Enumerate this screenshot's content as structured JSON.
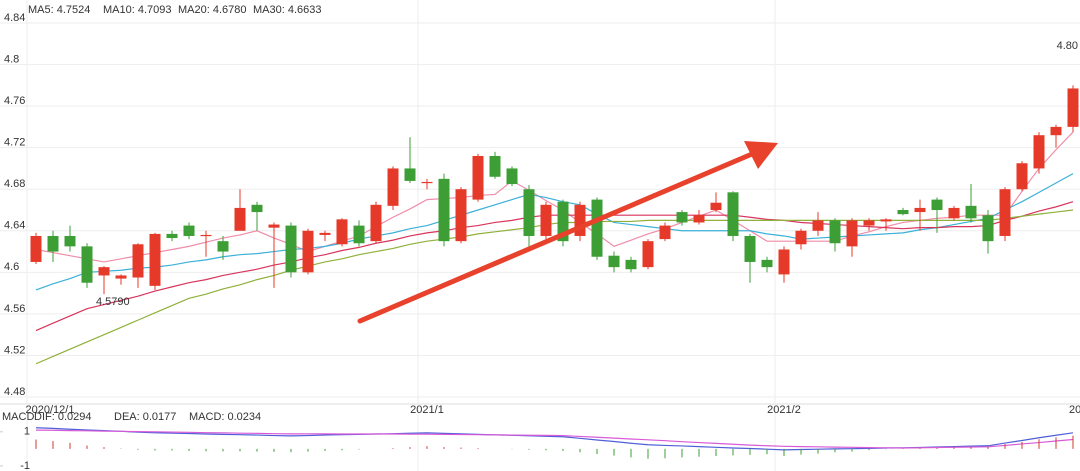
{
  "chart_data": [
    {
      "type": "candlestick",
      "categories": [
        "2020/12/1",
        null,
        null,
        null,
        null,
        null,
        null,
        null,
        null,
        null,
        null,
        null,
        null,
        null,
        null,
        null,
        null,
        null,
        null,
        null,
        null,
        null,
        null,
        "2021/1",
        null,
        null,
        null,
        null,
        null,
        null,
        null,
        null,
        null,
        null,
        null,
        null,
        null,
        null,
        null,
        null,
        null,
        null,
        null,
        null,
        "2021/2",
        null,
        null,
        null,
        null,
        null,
        null,
        null,
        null,
        null,
        null,
        null,
        null,
        null,
        null,
        null,
        null,
        "20"
      ],
      "open": [
        4.61,
        4.635,
        4.635,
        4.625,
        4.597,
        4.594,
        4.595,
        4.587,
        4.637,
        4.645,
        4.635,
        4.63,
        4.64,
        4.665,
        4.643,
        4.645,
        4.6,
        4.636,
        4.627,
        4.645,
        4.63,
        4.664,
        4.7,
        4.686,
        4.69,
        4.63,
        4.67,
        4.712,
        4.7,
        4.68,
        4.635,
        4.668,
        4.635,
        4.67,
        4.616,
        4.612,
        4.605,
        4.632,
        4.658,
        4.648,
        4.66,
        4.677,
        4.635,
        4.612,
        4.598,
        4.627,
        4.64,
        4.65,
        4.625,
        4.645,
        4.649,
        4.66,
        4.658,
        4.67,
        4.652,
        4.664,
        4.655,
        4.635,
        4.68,
        4.7,
        4.732,
        4.74
      ],
      "high": [
        4.638,
        4.64,
        4.645,
        4.628,
        4.606,
        4.598,
        4.628,
        4.638,
        4.64,
        4.648,
        4.64,
        4.635,
        4.68,
        4.668,
        4.648,
        4.648,
        4.642,
        4.64,
        4.652,
        4.65,
        4.668,
        4.702,
        4.73,
        4.69,
        4.695,
        4.682,
        4.714,
        4.716,
        4.702,
        4.684,
        4.668,
        4.67,
        4.668,
        4.672,
        4.62,
        4.615,
        4.632,
        4.648,
        4.66,
        4.66,
        4.677,
        4.678,
        4.637,
        4.615,
        4.625,
        4.642,
        4.658,
        4.652,
        4.652,
        4.652,
        4.652,
        4.662,
        4.67,
        4.672,
        4.664,
        4.685,
        4.66,
        4.682,
        4.707,
        4.735,
        4.742,
        4.78
      ],
      "low": [
        4.608,
        4.61,
        4.62,
        4.585,
        4.579,
        4.588,
        4.585,
        4.583,
        4.63,
        4.632,
        4.615,
        4.612,
        4.64,
        4.64,
        4.585,
        4.595,
        4.598,
        4.63,
        4.625,
        4.625,
        4.628,
        4.66,
        4.686,
        4.68,
        4.625,
        4.628,
        4.668,
        4.69,
        4.683,
        4.62,
        4.632,
        4.625,
        4.63,
        4.612,
        4.6,
        4.6,
        4.603,
        4.63,
        4.645,
        4.646,
        4.658,
        4.63,
        4.59,
        4.6,
        4.59,
        4.622,
        4.635,
        4.62,
        4.615,
        4.64,
        4.64,
        4.655,
        4.64,
        4.638,
        4.65,
        4.648,
        4.618,
        4.63,
        4.678,
        4.695,
        4.72,
        4.735
      ],
      "close": [
        4.635,
        4.62,
        4.625,
        4.59,
        4.605,
        4.597,
        4.627,
        4.637,
        4.633,
        4.635,
        4.636,
        4.62,
        4.662,
        4.658,
        4.646,
        4.6,
        4.64,
        4.638,
        4.651,
        4.628,
        4.665,
        4.7,
        4.688,
        4.687,
        4.63,
        4.68,
        4.712,
        4.692,
        4.685,
        4.635,
        4.665,
        4.63,
        4.665,
        4.615,
        4.605,
        4.603,
        4.63,
        4.645,
        4.648,
        4.655,
        4.667,
        4.635,
        4.61,
        4.605,
        4.622,
        4.64,
        4.65,
        4.628,
        4.65,
        4.65,
        4.651,
        4.656,
        4.662,
        4.66,
        4.662,
        4.652,
        4.63,
        4.68,
        4.705,
        4.732,
        4.74,
        4.777
      ],
      "up_color": "#e5392a",
      "down_color": "#3c9e34",
      "series": [
        {
          "name": "MA5: 4.7524",
          "color": "#f08ca8",
          "values": [
            4.622,
            4.619,
            4.616,
            4.613,
            4.61,
            4.613,
            4.616,
            4.619,
            4.622,
            4.625,
            4.629,
            4.633,
            4.636,
            4.64,
            4.633,
            4.627,
            4.62,
            4.625,
            4.63,
            4.635,
            4.644,
            4.653,
            4.661,
            4.67,
            4.671,
            4.672,
            4.674,
            4.675,
            4.688,
            4.679,
            4.669,
            4.66,
            4.648,
            4.637,
            4.625,
            4.631,
            4.637,
            4.642,
            4.648,
            4.654,
            4.66,
            4.65,
            4.64,
            4.63,
            4.63,
            4.63,
            4.63,
            4.63,
            4.635,
            4.639,
            4.644,
            4.648,
            4.65,
            4.652,
            4.653,
            4.655,
            4.655,
            4.655,
            4.678,
            4.7,
            4.718,
            4.735
          ]
        },
        {
          "name": "MA10: 4.7093",
          "color": "#3bb0d8",
          "values": [
            4.583,
            4.589,
            4.594,
            4.6,
            4.601,
            4.602,
            4.604,
            4.605,
            4.607,
            4.61,
            4.612,
            4.615,
            4.617,
            4.618,
            4.62,
            4.622,
            4.623,
            4.625,
            4.628,
            4.632,
            4.635,
            4.638,
            4.642,
            4.645,
            4.65,
            4.655,
            4.66,
            4.665,
            4.67,
            4.675,
            4.672,
            4.668,
            4.665,
            4.656,
            4.648,
            4.646,
            4.644,
            4.642,
            4.64,
            4.64,
            4.64,
            4.64,
            4.64,
            4.637,
            4.635,
            4.632,
            4.633,
            4.634,
            4.635,
            4.636,
            4.637,
            4.638,
            4.641,
            4.643,
            4.646,
            4.649,
            4.652,
            4.66,
            4.668,
            4.677,
            4.686,
            4.695
          ]
        },
        {
          "name": "MA20: 4.6780",
          "color": "#d8345c",
          "values": [
            4.544,
            4.551,
            4.558,
            4.565,
            4.569,
            4.573,
            4.577,
            4.582,
            4.586,
            4.59,
            4.593,
            4.597,
            4.6,
            4.603,
            4.607,
            4.61,
            4.614,
            4.617,
            4.621,
            4.624,
            4.628,
            4.631,
            4.635,
            4.638,
            4.64,
            4.643,
            4.645,
            4.648,
            4.65,
            4.653,
            4.655,
            4.655,
            4.655,
            4.655,
            4.655,
            4.655,
            4.655,
            4.655,
            4.655,
            4.655,
            4.655,
            4.655,
            4.653,
            4.651,
            4.65,
            4.648,
            4.647,
            4.646,
            4.645,
            4.644,
            4.643,
            4.642,
            4.643,
            4.643,
            4.644,
            4.644,
            4.645,
            4.65,
            4.654,
            4.659,
            4.663,
            4.668
          ]
        },
        {
          "name": "MA30: 4.6633",
          "color": "#8fb03a",
          "values": [
            4.512,
            4.519,
            4.526,
            4.533,
            4.54,
            4.547,
            4.554,
            4.561,
            4.568,
            4.575,
            4.579,
            4.584,
            4.588,
            4.593,
            4.597,
            4.602,
            4.606,
            4.61,
            4.613,
            4.617,
            4.62,
            4.623,
            4.627,
            4.63,
            4.632,
            4.634,
            4.637,
            4.639,
            4.641,
            4.643,
            4.646,
            4.648,
            4.648,
            4.649,
            4.649,
            4.649,
            4.65,
            4.65,
            4.65,
            4.65,
            4.65,
            4.65,
            4.65,
            4.65,
            4.65,
            4.65,
            4.65,
            4.65,
            4.65,
            4.65,
            4.65,
            4.65,
            4.65,
            4.65,
            4.65,
            4.65,
            4.65,
            4.652,
            4.654,
            4.656,
            4.658,
            4.66
          ]
        }
      ],
      "annotations": [
        "4.5790",
        "4.80"
      ],
      "ylim": [
        4.48,
        4.84
      ],
      "yticks": [
        4.84,
        4.8,
        4.76,
        4.72,
        4.68,
        4.64,
        4.6,
        4.56,
        4.52,
        4.48
      ],
      "grid": true
    },
    {
      "type": "macd",
      "title": "MACD",
      "series": [
        {
          "name": "DIF: 0.0294",
          "color": "#4f5fd8",
          "values": [
            1.24,
            1.2,
            1.15,
            1.11,
            1.07,
            1.03,
            0.98,
            0.94,
            0.92,
            0.9,
            0.87,
            0.85,
            0.83,
            0.81,
            0.78,
            0.76,
            0.78,
            0.81,
            0.83,
            0.85,
            0.87,
            0.89,
            0.92,
            0.94,
            0.91,
            0.88,
            0.85,
            0.82,
            0.8,
            0.77,
            0.74,
            0.71,
            0.62,
            0.52,
            0.43,
            0.33,
            0.24,
            0.2,
            0.17,
            0.13,
            0.09,
            0.05,
            0.02,
            -0.02,
            -0.06,
            -0.04,
            -0.02,
            0.0,
            0.01,
            0.03,
            0.05,
            0.06,
            0.08,
            0.11,
            0.13,
            0.16,
            0.18,
            0.34,
            0.49,
            0.65,
            0.8,
            0.94
          ]
        },
        {
          "name": "DEA: 0.0177",
          "color": "#d85ad8",
          "values": [
            1.1,
            1.09,
            1.07,
            1.06,
            1.04,
            1.03,
            1.01,
            1.0,
            0.98,
            0.97,
            0.95,
            0.94,
            0.92,
            0.91,
            0.89,
            0.88,
            0.88,
            0.88,
            0.87,
            0.87,
            0.87,
            0.87,
            0.86,
            0.86,
            0.85,
            0.84,
            0.83,
            0.82,
            0.81,
            0.8,
            0.79,
            0.78,
            0.73,
            0.68,
            0.63,
            0.58,
            0.53,
            0.48,
            0.42,
            0.37,
            0.32,
            0.27,
            0.22,
            0.18,
            0.15,
            0.13,
            0.12,
            0.1,
            0.09,
            0.07,
            0.06,
            0.05,
            0.06,
            0.08,
            0.09,
            0.11,
            0.12,
            0.2,
            0.29,
            0.37,
            0.46,
            0.55
          ]
        },
        {
          "name": "MACD: 0.0234",
          "color": "#c0392b",
          "kind": "bar",
          "values": [
            0.55,
            0.45,
            0.35,
            0.2,
            0.1,
            0.02,
            -0.05,
            -0.1,
            -0.1,
            -0.12,
            -0.14,
            -0.15,
            -0.15,
            -0.16,
            -0.18,
            -0.2,
            -0.16,
            -0.12,
            -0.08,
            -0.04,
            0.0,
            0.04,
            0.1,
            0.15,
            0.1,
            0.08,
            0.04,
            0.0,
            -0.02,
            -0.05,
            -0.08,
            -0.12,
            -0.2,
            -0.3,
            -0.4,
            -0.5,
            -0.58,
            -0.55,
            -0.5,
            -0.46,
            -0.42,
            -0.38,
            -0.35,
            -0.32,
            -0.42,
            -0.34,
            -0.28,
            -0.2,
            -0.16,
            -0.08,
            -0.02,
            0.02,
            0.04,
            0.06,
            0.08,
            0.1,
            0.12,
            0.28,
            0.4,
            0.56,
            0.68,
            0.78
          ]
        }
      ],
      "up_color": "#d0392b",
      "down_color": "#3c9e34",
      "ylim": [
        -1.3,
        1.4
      ],
      "yticks": [
        1,
        -1
      ]
    }
  ]
}
